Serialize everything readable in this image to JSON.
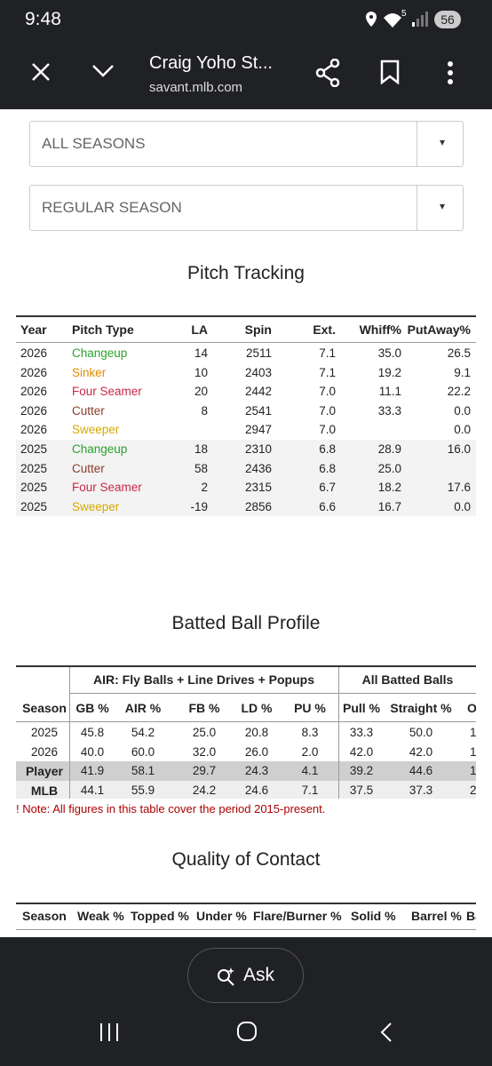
{
  "status_bar": {
    "time": "9:48",
    "network": "5",
    "battery": "56"
  },
  "browser": {
    "title": "Craig Yoho St...",
    "url": "savant.mlb.com"
  },
  "filters": [
    {
      "label": "ALL SEASONS",
      "arrow": "▾"
    },
    {
      "label": "REGULAR SEASON",
      "arrow": "▾"
    }
  ],
  "pitch_tracking": {
    "title": "Pitch Tracking",
    "columns": [
      "Year",
      "Pitch Type",
      "LA",
      "Spin",
      "Ext.",
      "Whiff%",
      "PutAway%"
    ],
    "rows": [
      {
        "color": "#2ca02c",
        "cells": [
          "2026",
          "Changeup",
          "14",
          "2511",
          "7.1",
          "35.0",
          "26.5"
        ]
      },
      {
        "color": "#e08a00",
        "cells": [
          "2026",
          "Sinker",
          "10",
          "2403",
          "7.1",
          "19.2",
          "9.1"
        ]
      },
      {
        "color": "#c8284a",
        "cells": [
          "2026",
          "Four Seamer",
          "20",
          "2442",
          "7.0",
          "11.1",
          "22.2"
        ]
      },
      {
        "color": "#8c3b2b",
        "cells": [
          "2026",
          "Cutter",
          "8",
          "2541",
          "7.0",
          "33.3",
          "0.0"
        ]
      },
      {
        "color": "#d4aa00",
        "cells": [
          "2026",
          "Sweeper",
          null,
          "2947",
          "7.0",
          null,
          "0.0"
        ]
      },
      {
        "color": "#2ca02c",
        "cells": [
          "2025",
          "Changeup",
          "18",
          "2310",
          "6.8",
          "28.9",
          "16.0"
        ]
      },
      {
        "color": "#8c3b2b",
        "cells": [
          "2025",
          "Cutter",
          "58",
          "2436",
          "6.8",
          "25.0",
          null
        ]
      },
      {
        "color": "#c8284a",
        "cells": [
          "2025",
          "Four Seamer",
          "2",
          "2315",
          "6.7",
          "18.2",
          "17.6"
        ]
      },
      {
        "color": "#d4aa00",
        "cells": [
          "2025",
          "Sweeper",
          "-19",
          "2856",
          "6.6",
          "16.7",
          "0.0"
        ]
      }
    ]
  },
  "batted_ball": {
    "title": "Batted Ball Profile",
    "groups": [
      "AIR: Fly Balls + Line Drives + Popups",
      "All Batted Balls"
    ],
    "columns": [
      "Season",
      "GB %",
      "AIR %",
      "FB %",
      "LD %",
      "PU %",
      "Pull %",
      "Straight %",
      "Opp"
    ],
    "rows": [
      [
        "2025",
        "45.8",
        "54.2",
        "25.0",
        "20.8",
        "8.3",
        "33.3",
        "50.0",
        "1"
      ],
      [
        "2026",
        "40.0",
        "60.0",
        "32.0",
        "26.0",
        "2.0",
        "42.0",
        "42.0",
        "1"
      ],
      [
        "Player",
        "41.9",
        "58.1",
        "29.7",
        "24.3",
        "4.1",
        "39.2",
        "44.6",
        "1"
      ],
      [
        "MLB",
        "44.1",
        "55.9",
        "24.2",
        "24.6",
        "7.1",
        "37.5",
        "37.3",
        "2"
      ]
    ],
    "note": "! Note: All figures in this table cover the period 2015-present."
  },
  "quality_of_contact": {
    "title": "Quality of Contact",
    "columns": [
      "Season",
      "Weak %",
      "Topped %",
      "Under %",
      "Flare/Burner %",
      "Solid %",
      "Barrel %",
      "Ba"
    ]
  },
  "bottom_bar": {
    "ask": "Ask"
  }
}
